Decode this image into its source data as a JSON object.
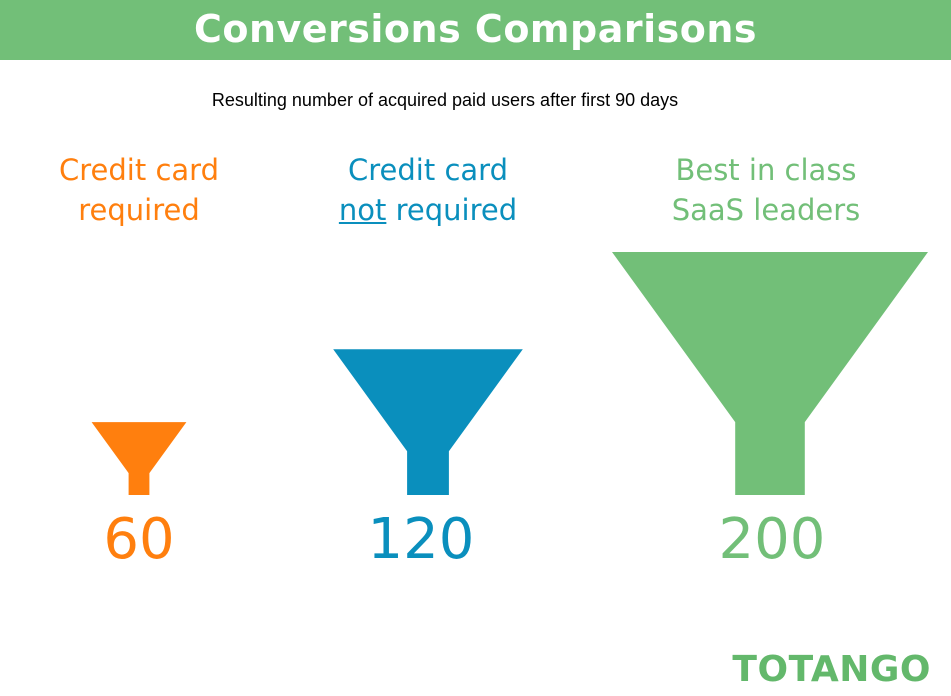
{
  "header": {
    "title": "Conversions Comparisons"
  },
  "subtitle": "Resulting number of acquired paid users after first 90 days",
  "chart_data": {
    "type": "bar",
    "title": "Conversions Comparisons",
    "subtitle": "Resulting number of acquired paid users after first 90 days",
    "categories": [
      "Credit card required",
      "Credit card not required",
      "Best in class SaaS leaders"
    ],
    "values": [
      60,
      120,
      200
    ],
    "value_labels": [
      "60",
      "120",
      "200"
    ],
    "colors": [
      "#ff7f0e",
      "#0a8fbd",
      "#72bf78"
    ]
  },
  "columns": [
    {
      "label_line1": "Credit card",
      "label_line2": "required",
      "value": "60",
      "color": "#ff7f0e"
    },
    {
      "label_line1": "Credit card",
      "label_line2_underlined": "not",
      "label_line2_rest": " required",
      "value": "120",
      "color": "#0a8fbd"
    },
    {
      "label_line1": "Best in class",
      "label_line2": "SaaS leaders",
      "value": "200",
      "color": "#72bf78"
    }
  ],
  "brand": {
    "name": "TOTANGO",
    "color": "#63b86b"
  },
  "colors": {
    "header_bg": "#72bf78",
    "title_text": "#ffffff"
  }
}
